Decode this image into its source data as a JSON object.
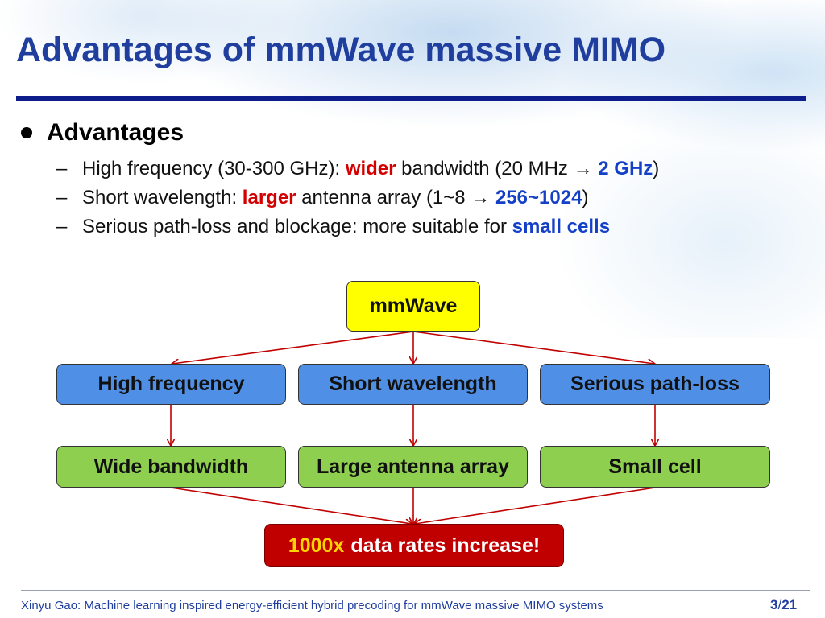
{
  "slide": {
    "title": "Advantages of mmWave massive MIMO",
    "bullet": "Advantages",
    "sub_items": [
      {
        "parts": [
          {
            "text": "High frequency (30-300 GHz): ",
            "style": "plain"
          },
          {
            "text": "wider",
            "style": "red"
          },
          {
            "text": " bandwidth (20 MHz → ",
            "style": "plain"
          },
          {
            "text": "2 GHz",
            "style": "blue"
          },
          {
            "text": ")",
            "style": "plain"
          }
        ]
      },
      {
        "parts": [
          {
            "text": "Short wavelength: ",
            "style": "plain"
          },
          {
            "text": "larger",
            "style": "red"
          },
          {
            "text": " antenna array (1~8 → ",
            "style": "plain"
          },
          {
            "text": "256~1024",
            "style": "blue"
          },
          {
            "text": ")",
            "style": "plain"
          }
        ]
      },
      {
        "parts": [
          {
            "text": "Serious path-loss and blockage: more suitable for ",
            "style": "plain"
          },
          {
            "text": "small cells",
            "style": "blue"
          }
        ]
      }
    ]
  },
  "diagram": {
    "root": "mmWave",
    "level1": [
      "High frequency",
      "Short wavelength",
      "Serious path-loss"
    ],
    "level2": [
      "Wide bandwidth",
      "Large antenna array",
      "Small cell"
    ],
    "result_highlight": "1000x",
    "result_rest": "data rates increase!",
    "colors": {
      "root": "#ffff00",
      "level1": "#4f8fe6",
      "level2": "#8fcf4f",
      "result": "#c00000",
      "arrow": "#c00000"
    }
  },
  "footer": {
    "text": "Xinyu Gao: Machine learning inspired energy-efficient hybrid precoding for mmWave massive MIMO systems",
    "page_current": "3",
    "page_separator": "/",
    "page_total": "21"
  }
}
